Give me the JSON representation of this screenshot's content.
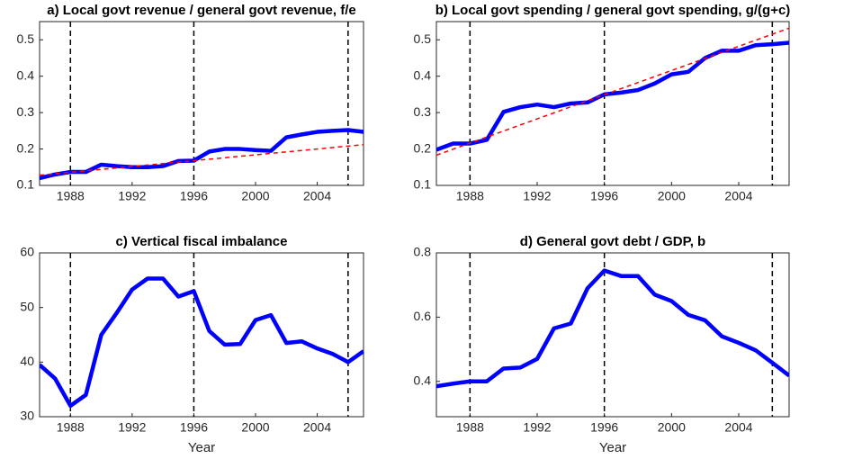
{
  "chart_data": [
    {
      "type": "line",
      "title": "a) Local govt revenue / general govt revenue, f/e",
      "x": [
        1986,
        1987,
        1988,
        1989,
        1990,
        1991,
        1992,
        1993,
        1994,
        1995,
        1996,
        1997,
        1998,
        1999,
        2000,
        2001,
        2002,
        2003,
        2004,
        2005,
        2006,
        2007
      ],
      "series": [
        {
          "color": "#0000ff",
          "values": [
            0.12,
            0.13,
            0.137,
            0.137,
            0.157,
            0.153,
            0.15,
            0.15,
            0.153,
            0.167,
            0.168,
            0.193,
            0.2,
            0.2,
            0.197,
            0.195,
            0.232,
            0.24,
            0.247,
            0.25,
            0.252,
            0.247
          ]
        }
      ],
      "trend": {
        "color": "#ff0000",
        "x": [
          1986,
          2007
        ],
        "values": [
          0.128,
          0.212
        ]
      },
      "vlines": [
        1988,
        1996,
        2006
      ],
      "xlim": [
        1986,
        2007
      ],
      "xticks": [
        1988,
        1992,
        1996,
        2000,
        2004
      ],
      "ylim": [
        0.1,
        0.55
      ],
      "yticks": [
        0.1,
        0.2,
        0.3,
        0.4,
        0.5
      ]
    },
    {
      "type": "line",
      "title": "b) Local govt spending / general govt spending, g/(g+c)",
      "x": [
        1986,
        1987,
        1988,
        1989,
        1990,
        1991,
        1992,
        1993,
        1994,
        1995,
        1996,
        1997,
        1998,
        1999,
        2000,
        2001,
        2002,
        2003,
        2004,
        2005,
        2006,
        2007
      ],
      "series": [
        {
          "color": "#0000ff",
          "values": [
            0.198,
            0.215,
            0.215,
            0.225,
            0.302,
            0.315,
            0.322,
            0.315,
            0.325,
            0.328,
            0.35,
            0.355,
            0.362,
            0.38,
            0.405,
            0.412,
            0.45,
            0.47,
            0.47,
            0.485,
            0.488,
            0.492
          ]
        }
      ],
      "trend": {
        "color": "#ff0000",
        "x": [
          1986,
          2007
        ],
        "values": [
          0.183,
          0.532
        ]
      },
      "vlines": [
        1988,
        1996,
        2006
      ],
      "xlim": [
        1986,
        2007
      ],
      "xticks": [
        1988,
        1992,
        1996,
        2000,
        2004
      ],
      "ylim": [
        0.1,
        0.55
      ],
      "yticks": [
        0.1,
        0.2,
        0.3,
        0.4,
        0.5
      ]
    },
    {
      "type": "line",
      "title": "c) Vertical fiscal imbalance",
      "x_label": "Year",
      "x": [
        1986,
        1987,
        1988,
        1989,
        1990,
        1991,
        1992,
        1993,
        1994,
        1995,
        1996,
        1997,
        1998,
        1999,
        2000,
        2001,
        2002,
        2003,
        2004,
        2005,
        2006,
        2007
      ],
      "series": [
        {
          "color": "#0000ff",
          "values": [
            39.5,
            37,
            32,
            34,
            45,
            49,
            53.3,
            55.3,
            55.3,
            52,
            53,
            45.7,
            43.2,
            43.3,
            47.7,
            48.6,
            43.5,
            43.8,
            42.5,
            41.5,
            40,
            42
          ]
        }
      ],
      "vlines": [
        1988,
        1996,
        2006
      ],
      "xlim": [
        1986,
        2007
      ],
      "xticks": [
        1988,
        1992,
        1996,
        2000,
        2004
      ],
      "ylim": [
        30,
        60
      ],
      "yticks": [
        30,
        40,
        50,
        60
      ]
    },
    {
      "type": "line",
      "title": "d) General govt debt / GDP, b",
      "x_label": "Year",
      "x": [
        1986,
        1987,
        1988,
        1989,
        1990,
        1991,
        1992,
        1993,
        1994,
        1995,
        1996,
        1997,
        1998,
        1999,
        2000,
        2001,
        2002,
        2003,
        2004,
        2005,
        2006,
        2007
      ],
      "series": [
        {
          "color": "#0000ff",
          "values": [
            0.385,
            0.393,
            0.4,
            0.4,
            0.44,
            0.443,
            0.47,
            0.565,
            0.58,
            0.69,
            0.745,
            0.728,
            0.728,
            0.67,
            0.65,
            0.607,
            0.59,
            0.54,
            0.52,
            0.497,
            0.458,
            0.418
          ]
        }
      ],
      "vlines": [
        1988,
        1996,
        2006
      ],
      "xlim": [
        1986,
        2007
      ],
      "xticks": [
        1988,
        1992,
        1996,
        2000,
        2004
      ],
      "ylim": [
        0.29,
        0.8
      ],
      "yticks": [
        0.4,
        0.6,
        0.8
      ]
    }
  ]
}
